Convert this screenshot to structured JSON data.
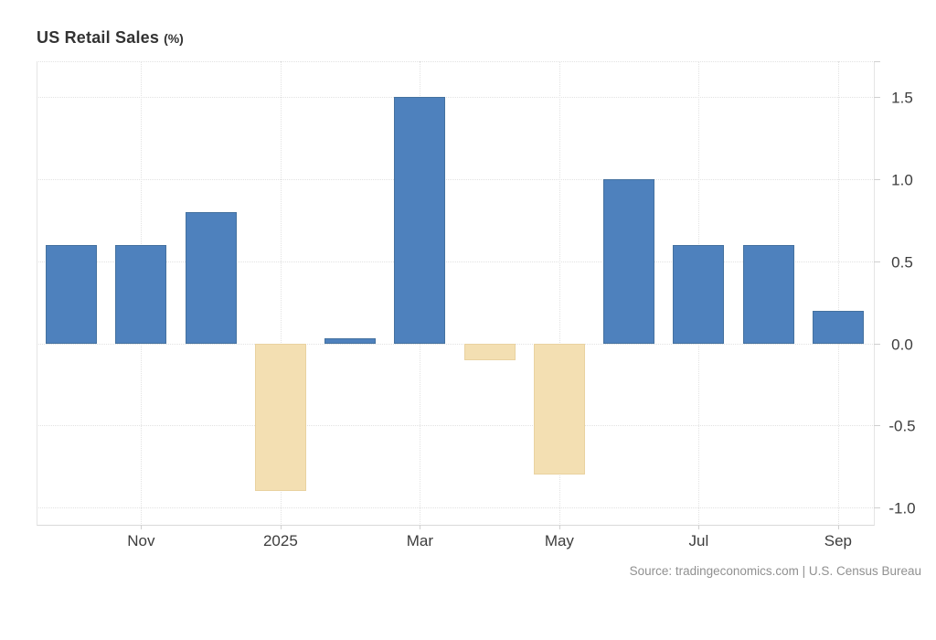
{
  "chart_data": {
    "type": "bar",
    "title": "US Retail Sales",
    "unit_label": "(%)",
    "num_slots": 12,
    "values": [
      0.6,
      0.6,
      0.8,
      -0.9,
      0.03,
      1.5,
      -0.1,
      -0.8,
      1.0,
      0.6,
      0.6,
      0.2
    ],
    "x_tick_labels": [
      "Nov",
      "2025",
      "Mar",
      "May",
      "Jul",
      "Sep"
    ],
    "x_tick_slots": [
      1,
      3,
      5,
      7,
      9,
      11
    ],
    "y_tick_labels": [
      "1.5",
      "1.0",
      "0.5",
      "0.0",
      "-0.5",
      "-1.0"
    ],
    "y_ticks": [
      1.5,
      1.0,
      0.5,
      0.0,
      -0.5,
      -1.0
    ],
    "ylim": [
      -1.1,
      1.72
    ],
    "grid": "dotted",
    "legend": "none",
    "y_axis_side": "right",
    "positive_color": "#4e81bd",
    "positive_border_color": "#44719f",
    "negative_color": "#f3dfb2",
    "negative_border_color": "#e9d2a0",
    "source": "Source: tradingeconomics.com | U.S. Census Bureau"
  }
}
